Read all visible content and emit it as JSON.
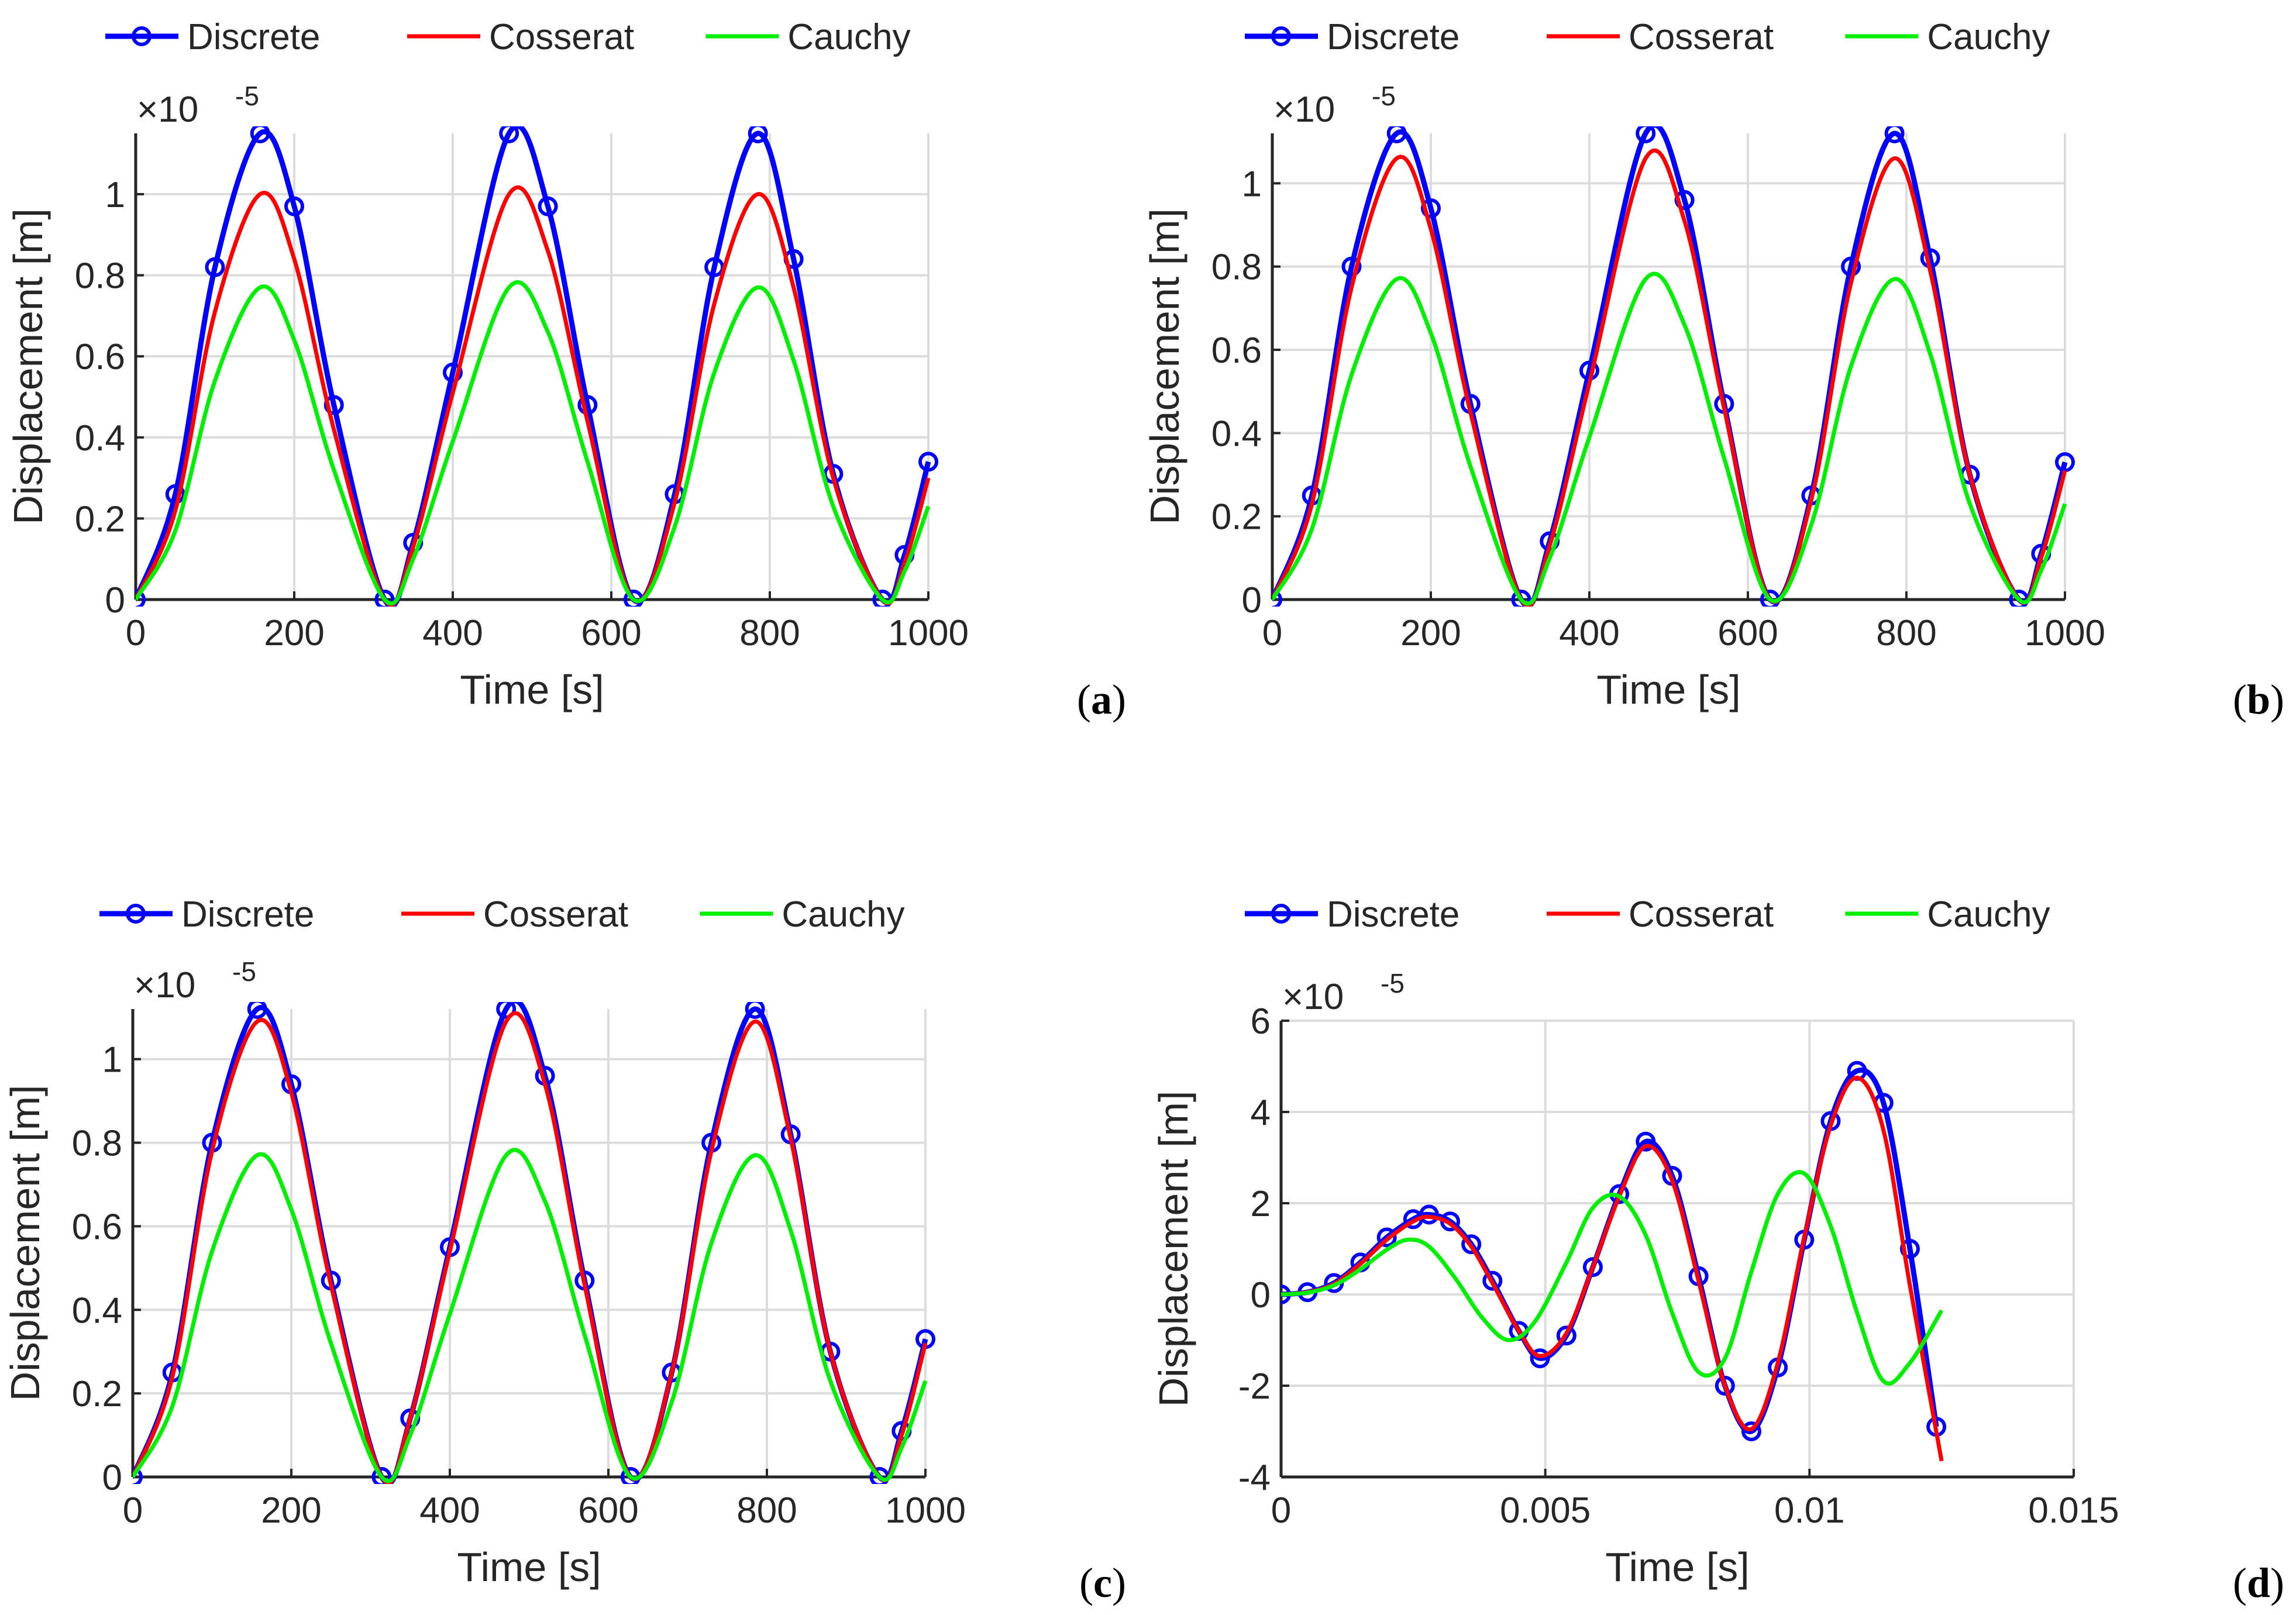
{
  "colors": {
    "discrete": "#0000ff",
    "cosserat": "#ff0000",
    "cauchy": "#00ee00",
    "grid": "#dcdcdc",
    "axis": "#262626"
  },
  "chart_data": [
    {
      "type": "line",
      "panel_label": "a",
      "xlabel": "Time [s]",
      "ylabel": "Displacement [m]",
      "exponent_label": "×10",
      "exponent": "-5",
      "xlim": [
        0,
        1000
      ],
      "ylim": [
        0,
        1.15
      ],
      "xticks": [
        0,
        200,
        400,
        600,
        800,
        1000
      ],
      "xtick_labels": [
        "0",
        "200",
        "400",
        "600",
        "800",
        "1000"
      ],
      "yticks": [
        0,
        0.2,
        0.4,
        0.6,
        0.8,
        1
      ],
      "ytick_labels": [
        "0",
        "0.2",
        "0.4",
        "0.6",
        "0.8",
        "1"
      ],
      "grid": true,
      "legend": {
        "position": "top",
        "orientation": "horizontal"
      },
      "series": [
        {
          "name": "Discrete",
          "marker": "circle",
          "x": [
            0,
            50,
            100,
            157,
            200,
            250,
            314,
            350,
            400,
            471,
            520,
            570,
            628,
            680,
            730,
            785,
            830,
            880,
            942,
            970,
            1000
          ],
          "y": [
            0,
            0.26,
            0.82,
            1.15,
            0.97,
            0.48,
            0,
            0.14,
            0.56,
            1.15,
            0.97,
            0.48,
            0,
            0.26,
            0.82,
            1.15,
            0.84,
            0.31,
            0,
            0.11,
            0.34
          ]
        },
        {
          "name": "Cosserat",
          "x": [
            0,
            50,
            100,
            157,
            200,
            250,
            314,
            350,
            400,
            471,
            520,
            570,
            628,
            680,
            730,
            785,
            830,
            880,
            942,
            970,
            1000
          ],
          "y": [
            0,
            0.22,
            0.71,
            1.0,
            0.84,
            0.42,
            0,
            0.13,
            0.51,
            1.0,
            0.86,
            0.44,
            0,
            0.24,
            0.73,
            1.0,
            0.77,
            0.3,
            0,
            0.09,
            0.3
          ]
        },
        {
          "name": "Cauchy",
          "x": [
            0,
            50,
            100,
            157,
            200,
            250,
            314,
            350,
            400,
            471,
            520,
            570,
            628,
            680,
            730,
            785,
            830,
            880,
            942,
            970,
            1000
          ],
          "y": [
            0,
            0.17,
            0.54,
            0.77,
            0.64,
            0.32,
            0,
            0.1,
            0.39,
            0.77,
            0.66,
            0.34,
            0,
            0.18,
            0.56,
            0.77,
            0.59,
            0.23,
            0,
            0.07,
            0.23
          ]
        }
      ]
    },
    {
      "type": "line",
      "panel_label": "b",
      "xlabel": "Time [s]",
      "ylabel": "Displacement [m]",
      "exponent_label": "×10",
      "exponent": "-5",
      "xlim": [
        0,
        1000
      ],
      "ylim": [
        0,
        1.12
      ],
      "xticks": [
        0,
        200,
        400,
        600,
        800,
        1000
      ],
      "xtick_labels": [
        "0",
        "200",
        "400",
        "600",
        "800",
        "1000"
      ],
      "yticks": [
        0,
        0.2,
        0.4,
        0.6,
        0.8,
        1
      ],
      "ytick_labels": [
        "0",
        "0.2",
        "0.4",
        "0.6",
        "0.8",
        "1"
      ],
      "grid": true,
      "legend": {
        "position": "top",
        "orientation": "horizontal"
      },
      "series": [
        {
          "name": "Discrete",
          "marker": "circle",
          "x": [
            0,
            50,
            100,
            157,
            200,
            250,
            314,
            350,
            400,
            471,
            520,
            570,
            628,
            680,
            730,
            785,
            830,
            880,
            942,
            970,
            1000
          ],
          "y": [
            0,
            0.25,
            0.8,
            1.12,
            0.94,
            0.47,
            0,
            0.14,
            0.55,
            1.12,
            0.96,
            0.47,
            0,
            0.25,
            0.8,
            1.12,
            0.82,
            0.3,
            0,
            0.11,
            0.33
          ]
        },
        {
          "name": "Cosserat",
          "x": [
            0,
            50,
            100,
            157,
            200,
            250,
            314,
            350,
            400,
            471,
            520,
            570,
            628,
            680,
            730,
            785,
            830,
            880,
            942,
            970,
            1000
          ],
          "y": [
            0,
            0.23,
            0.75,
            1.06,
            0.89,
            0.45,
            0,
            0.13,
            0.52,
            1.06,
            0.91,
            0.46,
            0,
            0.24,
            0.76,
            1.06,
            0.79,
            0.3,
            0,
            0.1,
            0.31
          ]
        },
        {
          "name": "Cauchy",
          "x": [
            0,
            50,
            100,
            157,
            200,
            250,
            314,
            350,
            400,
            471,
            520,
            570,
            628,
            680,
            730,
            785,
            830,
            880,
            942,
            970,
            1000
          ],
          "y": [
            0,
            0.17,
            0.54,
            0.77,
            0.64,
            0.32,
            0,
            0.1,
            0.39,
            0.77,
            0.66,
            0.34,
            0,
            0.18,
            0.56,
            0.77,
            0.59,
            0.23,
            0,
            0.07,
            0.23
          ]
        }
      ]
    },
    {
      "type": "line",
      "panel_label": "c",
      "xlabel": "Time [s]",
      "ylabel": "Displacement [m]",
      "exponent_label": "×10",
      "exponent": "-5",
      "xlim": [
        0,
        1000
      ],
      "ylim": [
        0,
        1.12
      ],
      "xticks": [
        0,
        200,
        400,
        600,
        800,
        1000
      ],
      "xtick_labels": [
        "0",
        "200",
        "400",
        "600",
        "800",
        "1000"
      ],
      "yticks": [
        0,
        0.2,
        0.4,
        0.6,
        0.8,
        1
      ],
      "ytick_labels": [
        "0",
        "0.2",
        "0.4",
        "0.6",
        "0.8",
        "1"
      ],
      "grid": true,
      "legend": {
        "position": "top",
        "orientation": "horizontal"
      },
      "series": [
        {
          "name": "Discrete",
          "marker": "circle",
          "x": [
            0,
            50,
            100,
            157,
            200,
            250,
            314,
            350,
            400,
            471,
            520,
            570,
            628,
            680,
            730,
            785,
            830,
            880,
            942,
            970,
            1000
          ],
          "y": [
            0,
            0.25,
            0.8,
            1.12,
            0.94,
            0.47,
            0,
            0.14,
            0.55,
            1.12,
            0.96,
            0.47,
            0,
            0.25,
            0.8,
            1.12,
            0.82,
            0.3,
            0,
            0.11,
            0.33
          ]
        },
        {
          "name": "Cosserat",
          "x": [
            0,
            50,
            100,
            157,
            200,
            250,
            314,
            350,
            400,
            471,
            520,
            570,
            628,
            680,
            730,
            785,
            830,
            880,
            942,
            970,
            1000
          ],
          "y": [
            0,
            0.24,
            0.78,
            1.09,
            0.92,
            0.46,
            0,
            0.14,
            0.54,
            1.09,
            0.94,
            0.46,
            0,
            0.25,
            0.78,
            1.09,
            0.81,
            0.3,
            0,
            0.1,
            0.32
          ]
        },
        {
          "name": "Cauchy",
          "x": [
            0,
            50,
            100,
            157,
            200,
            250,
            314,
            350,
            400,
            471,
            520,
            570,
            628,
            680,
            730,
            785,
            830,
            880,
            942,
            970,
            1000
          ],
          "y": [
            0,
            0.17,
            0.54,
            0.77,
            0.64,
            0.32,
            0,
            0.1,
            0.39,
            0.77,
            0.66,
            0.34,
            0,
            0.18,
            0.56,
            0.77,
            0.59,
            0.23,
            0,
            0.07,
            0.23
          ]
        }
      ]
    },
    {
      "type": "line",
      "panel_label": "d",
      "xlabel": "Time [s]",
      "ylabel": "Displacement [m]",
      "exponent_label": "×10",
      "exponent": "-5",
      "xlim": [
        0,
        0.015
      ],
      "ylim": [
        -4,
        6
      ],
      "xticks": [
        0,
        0.005,
        0.01,
        0.015
      ],
      "xtick_labels": [
        "0",
        "0.005",
        "0.01",
        "0.015"
      ],
      "yticks": [
        -4,
        -2,
        0,
        2,
        4,
        6
      ],
      "ytick_labels": [
        "-4",
        "-2",
        "0",
        "2",
        "4",
        "6"
      ],
      "grid": true,
      "legend": {
        "position": "top",
        "orientation": "horizontal"
      },
      "series": [
        {
          "name": "Discrete",
          "marker": "circle",
          "x": [
            0,
            0.0005,
            0.001,
            0.0015,
            0.002,
            0.0025,
            0.0028,
            0.0032,
            0.0036,
            0.004,
            0.0045,
            0.0049,
            0.0054,
            0.0059,
            0.0064,
            0.0069,
            0.0074,
            0.0079,
            0.0084,
            0.0089,
            0.0094,
            0.0099,
            0.0104,
            0.0109,
            0.0114,
            0.0119,
            0.0124
          ],
          "y": [
            0,
            0.05,
            0.25,
            0.7,
            1.25,
            1.65,
            1.75,
            1.6,
            1.1,
            0.3,
            -0.8,
            -1.4,
            -0.9,
            0.6,
            2.2,
            3.35,
            2.6,
            0.4,
            -2.0,
            -3.0,
            -1.6,
            1.2,
            3.8,
            4.9,
            4.2,
            1.0,
            -2.9
          ]
        },
        {
          "name": "Cosserat",
          "x": [
            0,
            0.0005,
            0.001,
            0.0015,
            0.002,
            0.0025,
            0.0028,
            0.0032,
            0.0036,
            0.004,
            0.0045,
            0.0049,
            0.0054,
            0.0059,
            0.0064,
            0.0069,
            0.0074,
            0.0079,
            0.0084,
            0.0089,
            0.0094,
            0.0099,
            0.0104,
            0.0109,
            0.0114,
            0.0119,
            0.0125
          ],
          "y": [
            0,
            0.05,
            0.23,
            0.67,
            1.2,
            1.6,
            1.7,
            1.55,
            1.05,
            0.25,
            -0.8,
            -1.35,
            -0.85,
            0.6,
            2.15,
            3.25,
            2.5,
            0.3,
            -2.0,
            -2.95,
            -1.5,
            1.25,
            3.7,
            4.75,
            3.6,
            0.2,
            -3.65
          ]
        },
        {
          "name": "Cauchy",
          "x": [
            0,
            0.0005,
            0.001,
            0.0015,
            0.002,
            0.0024,
            0.0028,
            0.0033,
            0.0038,
            0.0043,
            0.0048,
            0.0054,
            0.0059,
            0.0064,
            0.0069,
            0.0074,
            0.0079,
            0.0084,
            0.0089,
            0.0094,
            0.0099,
            0.0104,
            0.0109,
            0.0114,
            0.0119,
            0.0125
          ],
          "y": [
            0,
            0.04,
            0.2,
            0.55,
            0.98,
            1.2,
            1.05,
            0.35,
            -0.5,
            -1.0,
            -0.6,
            0.7,
            1.9,
            2.15,
            1.3,
            -0.4,
            -1.7,
            -1.4,
            0.5,
            2.2,
            2.65,
            1.5,
            -0.4,
            -1.9,
            -1.5,
            -0.35
          ]
        }
      ]
    }
  ]
}
